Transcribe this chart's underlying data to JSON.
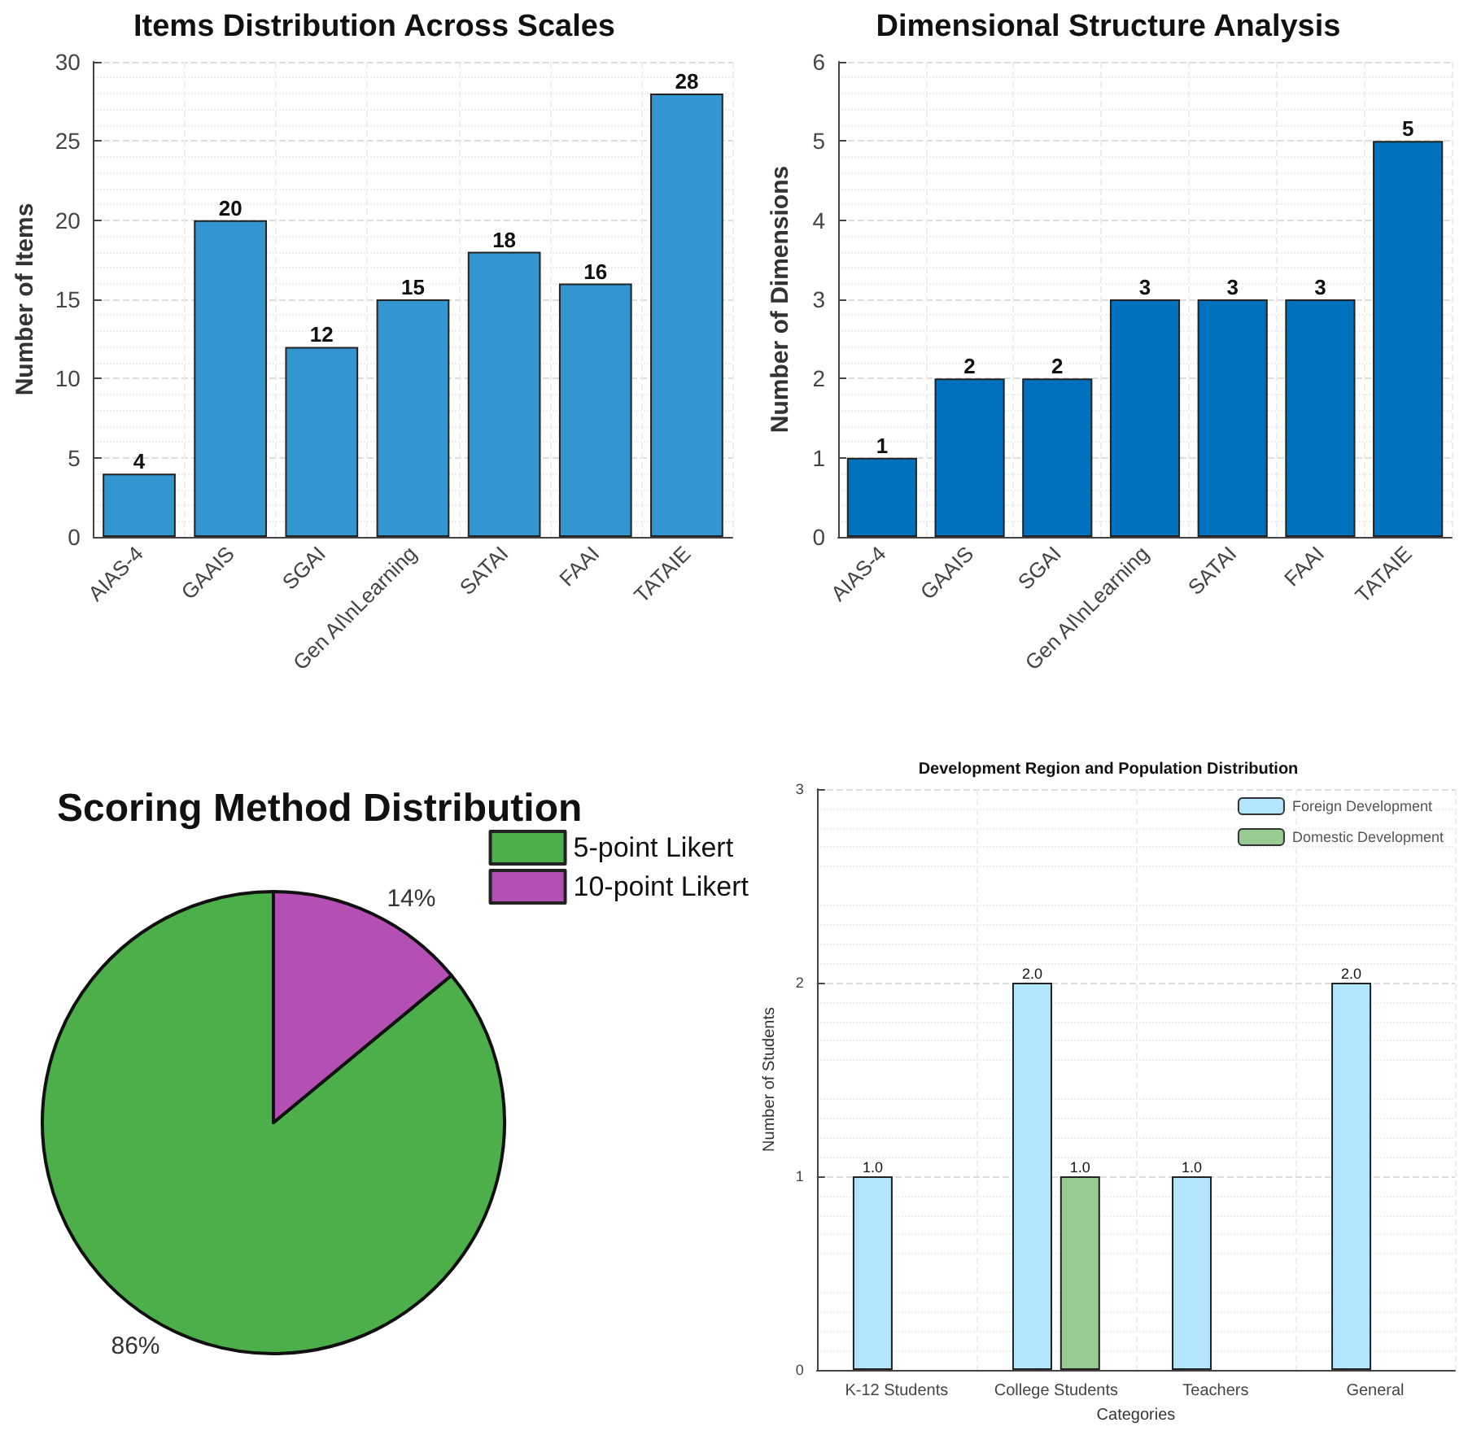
{
  "chart_data": [
    {
      "type": "bar",
      "title": "Items Distribution Across Scales",
      "ylabel": "Number of Items",
      "categories": [
        "AIAS-4",
        "GAAIS",
        "SGAI",
        "Gen AI\\nLearning",
        "SATAI",
        "FAAI",
        "TATAIE"
      ],
      "values": [
        4,
        20,
        12,
        15,
        18,
        16,
        28
      ],
      "color": "#3496d0",
      "ylim": [
        0,
        30
      ],
      "yticks": [
        0,
        5,
        10,
        15,
        20,
        25,
        30
      ],
      "grid": true,
      "data_labels": true
    },
    {
      "type": "bar",
      "title": "Dimensional Structure Analysis",
      "ylabel": "Number of Dimensions",
      "categories": [
        "AIAS-4",
        "GAAIS",
        "SGAI",
        "Gen AI\\nLearning",
        "SATAI",
        "FAAI",
        "TATAIE"
      ],
      "values": [
        1,
        2,
        2,
        3,
        3,
        3,
        5
      ],
      "color": "#0072bd",
      "ylim": [
        0,
        6
      ],
      "yticks": [
        0,
        1,
        2,
        3,
        4,
        5,
        6
      ],
      "grid": true,
      "data_labels": true
    },
    {
      "type": "pie",
      "title": "Scoring Method Distribution",
      "categories": [
        "5-point Likert",
        "10-point Likert"
      ],
      "values": [
        86,
        14
      ],
      "colors": [
        "#4caf4a",
        "#b44fb4"
      ],
      "value_labels": [
        "86%",
        "14%"
      ],
      "legend": "right"
    },
    {
      "type": "bar",
      "title": "Development Region and Population Distribution",
      "xlabel": "Categories",
      "ylabel": "Number of Students",
      "categories": [
        "K-12 Students",
        "College Students",
        "Teachers",
        "General"
      ],
      "series": [
        {
          "name": "Foreign Development",
          "color": "#b3e5fc",
          "values": [
            1,
            2,
            1,
            2
          ],
          "value_labels": [
            "1.0",
            "2.0",
            "1.0",
            "2.0"
          ]
        },
        {
          "name": "Domestic Development",
          "color": "#98cb94",
          "values": [
            0,
            1,
            0,
            0
          ],
          "value_labels": [
            null,
            "1.0",
            null,
            null
          ]
        }
      ],
      "ylim": [
        0,
        3
      ],
      "yticks": [
        0,
        1,
        2,
        3
      ],
      "grid": true,
      "legend": "top right"
    }
  ]
}
